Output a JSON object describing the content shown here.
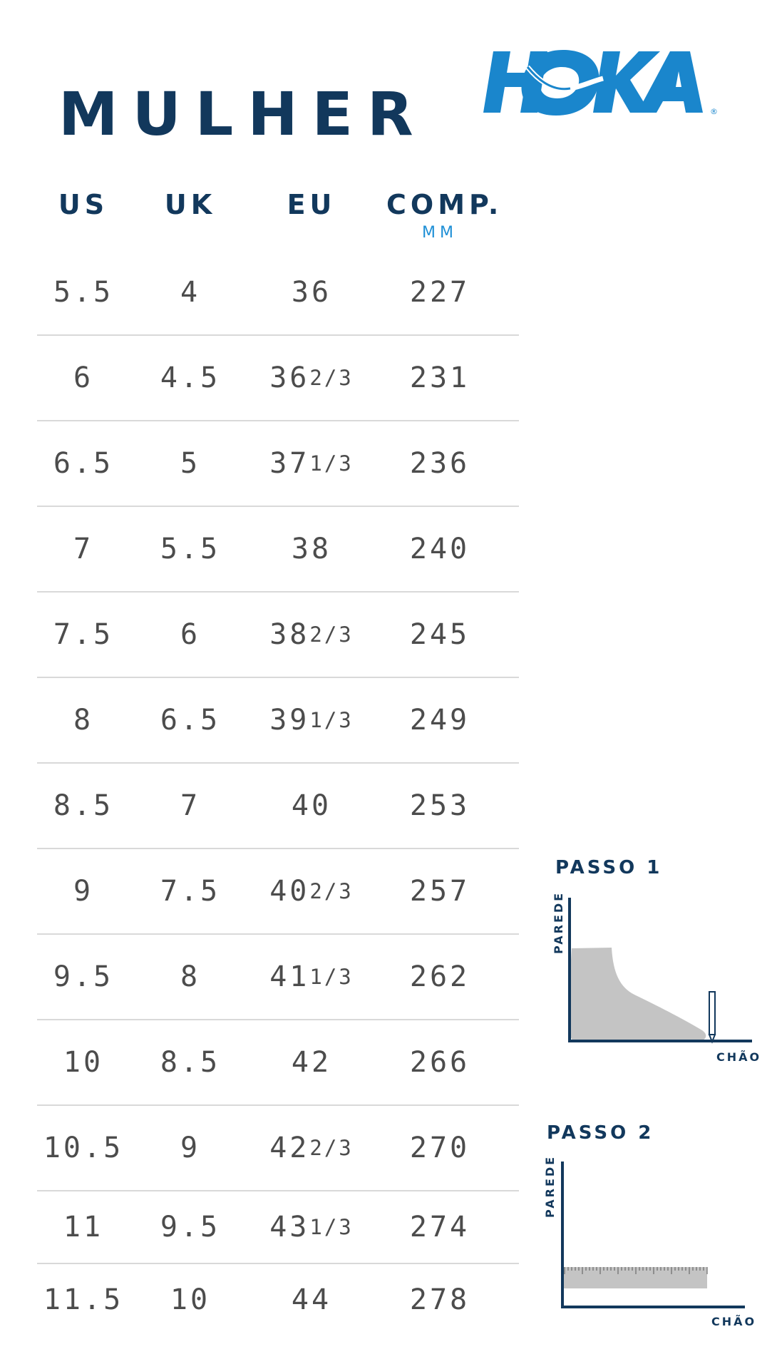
{
  "title": "MULHER",
  "brand": {
    "name": "HOKA",
    "color": "#1a86cc",
    "registered": "®"
  },
  "colors": {
    "navy": "#12385c",
    "accent": "#1e8fd6",
    "text": "#4c4c4c",
    "divider": "#d9d9d9"
  },
  "table": {
    "headers": {
      "us": "US",
      "uk": "UK",
      "eu": "EU",
      "comp": "COMP.",
      "comp_unit": "MM"
    },
    "rows": [
      {
        "us": "5.5",
        "uk": "4",
        "eu": "36",
        "eu_frac": "",
        "mm": "227"
      },
      {
        "us": "6",
        "uk": "4.5",
        "eu": "36",
        "eu_frac": "2/3",
        "mm": "231"
      },
      {
        "us": "6.5",
        "uk": "5",
        "eu": "37",
        "eu_frac": "1/3",
        "mm": "236"
      },
      {
        "us": "7",
        "uk": "5.5",
        "eu": "38",
        "eu_frac": "",
        "mm": "240"
      },
      {
        "us": "7.5",
        "uk": "6",
        "eu": "38",
        "eu_frac": "2/3",
        "mm": "245"
      },
      {
        "us": "8",
        "uk": "6.5",
        "eu": "39",
        "eu_frac": "1/3",
        "mm": "249"
      },
      {
        "us": "8.5",
        "uk": "7",
        "eu": "40",
        "eu_frac": "",
        "mm": "253"
      },
      {
        "us": "9",
        "uk": "7.5",
        "eu": "40",
        "eu_frac": "2/3",
        "mm": "257"
      },
      {
        "us": "9.5",
        "uk": "8",
        "eu": "41",
        "eu_frac": "1/3",
        "mm": "262"
      },
      {
        "us": "10",
        "uk": "8.5",
        "eu": "42",
        "eu_frac": "",
        "mm": "266"
      },
      {
        "us": "10.5",
        "uk": "9",
        "eu": "42",
        "eu_frac": "2/3",
        "mm": "270"
      },
      {
        "us": "11",
        "uk": "9.5",
        "eu": "43",
        "eu_frac": "1/3",
        "mm": "274"
      },
      {
        "us": "11.5",
        "uk": "10",
        "eu": "44",
        "eu_frac": "",
        "mm": "278"
      }
    ]
  },
  "steps": [
    {
      "label": "PASSO 1",
      "wall": "PAREDE",
      "floor": "CHÃO",
      "illustration": "foot-against-wall-icon"
    },
    {
      "label": "PASSO 2",
      "wall": "PAREDE",
      "floor": "CHÃO",
      "illustration": "ruler-icon"
    }
  ]
}
